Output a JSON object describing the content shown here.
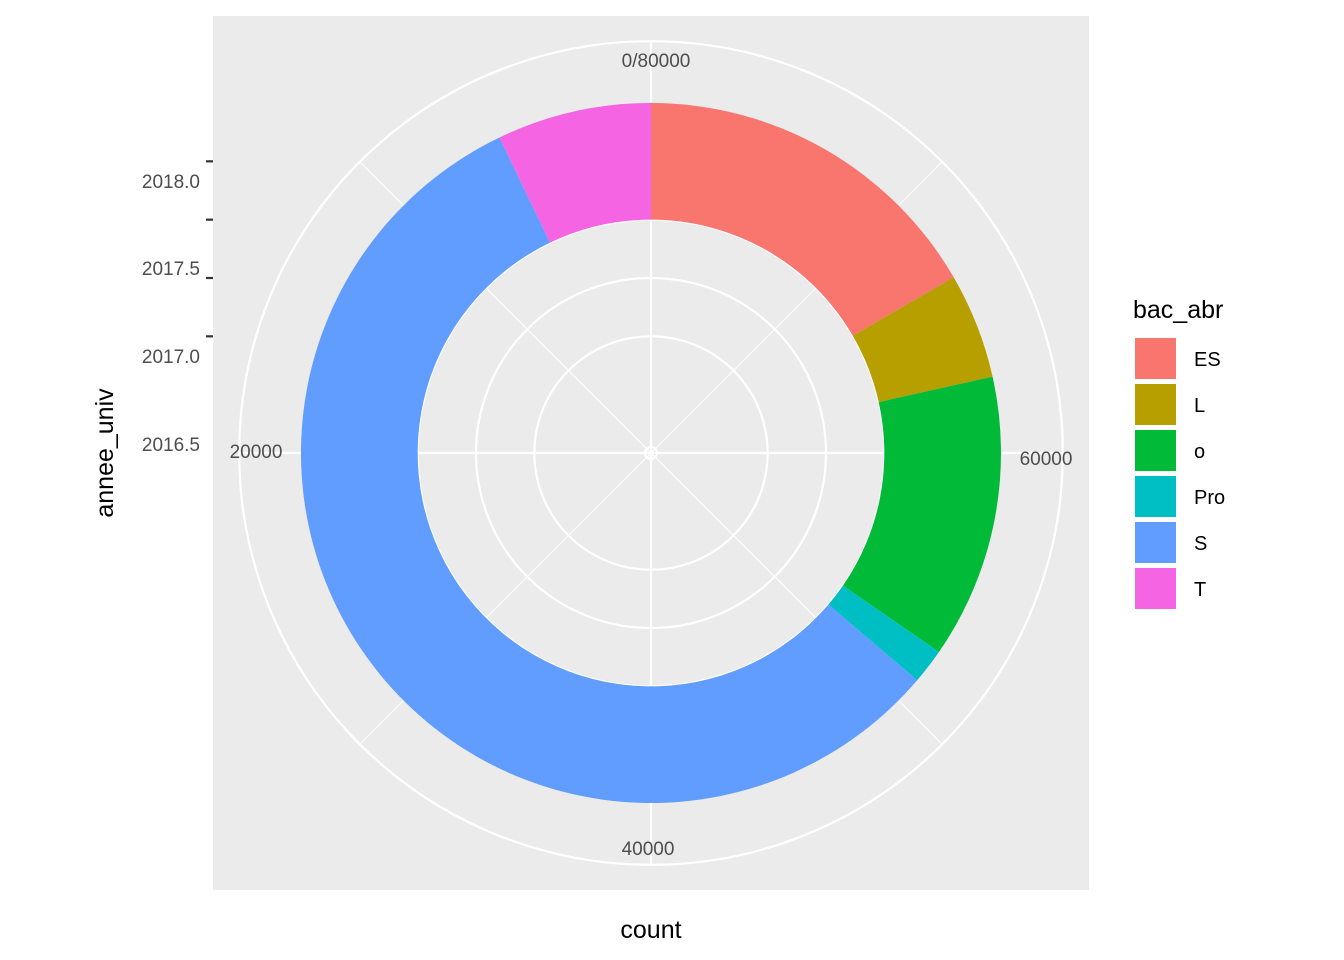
{
  "chart_data": {
    "type": "pie",
    "coord": "polar",
    "xlabel": "count",
    "ylabel": "annee_univ",
    "y_ticks": [
      2016.5,
      2017.0,
      2017.5,
      2018.0
    ],
    "y_tick_labels": [
      "2016.5",
      "2017.0",
      "2017.5",
      "2018.0"
    ],
    "ylim": [
      2015.5,
      2018.5
    ],
    "bar_range": [
      2017.5,
      2018.5
    ],
    "theta_max": 80000,
    "theta_ticks": [
      0,
      20000,
      40000,
      60000
    ],
    "theta_tick_labels": [
      "0/80000",
      "20000",
      "40000",
      "60000"
    ],
    "legend_title": "bac_abr",
    "legend_position": "right",
    "grid": true,
    "categories": [
      "ES",
      "L",
      "o",
      "Pro",
      "S",
      "T"
    ],
    "values": [
      13300,
      3900,
      10500,
      1300,
      45300,
      5700
    ],
    "colors": [
      "#F8766D",
      "#B79F00",
      "#00BA38",
      "#00BFC4",
      "#619CFF",
      "#F564E3"
    ]
  },
  "colors": {
    "panel_bg": "#EBEBEB",
    "grid": "#FFFFFF",
    "tick_mark": "#333333"
  }
}
